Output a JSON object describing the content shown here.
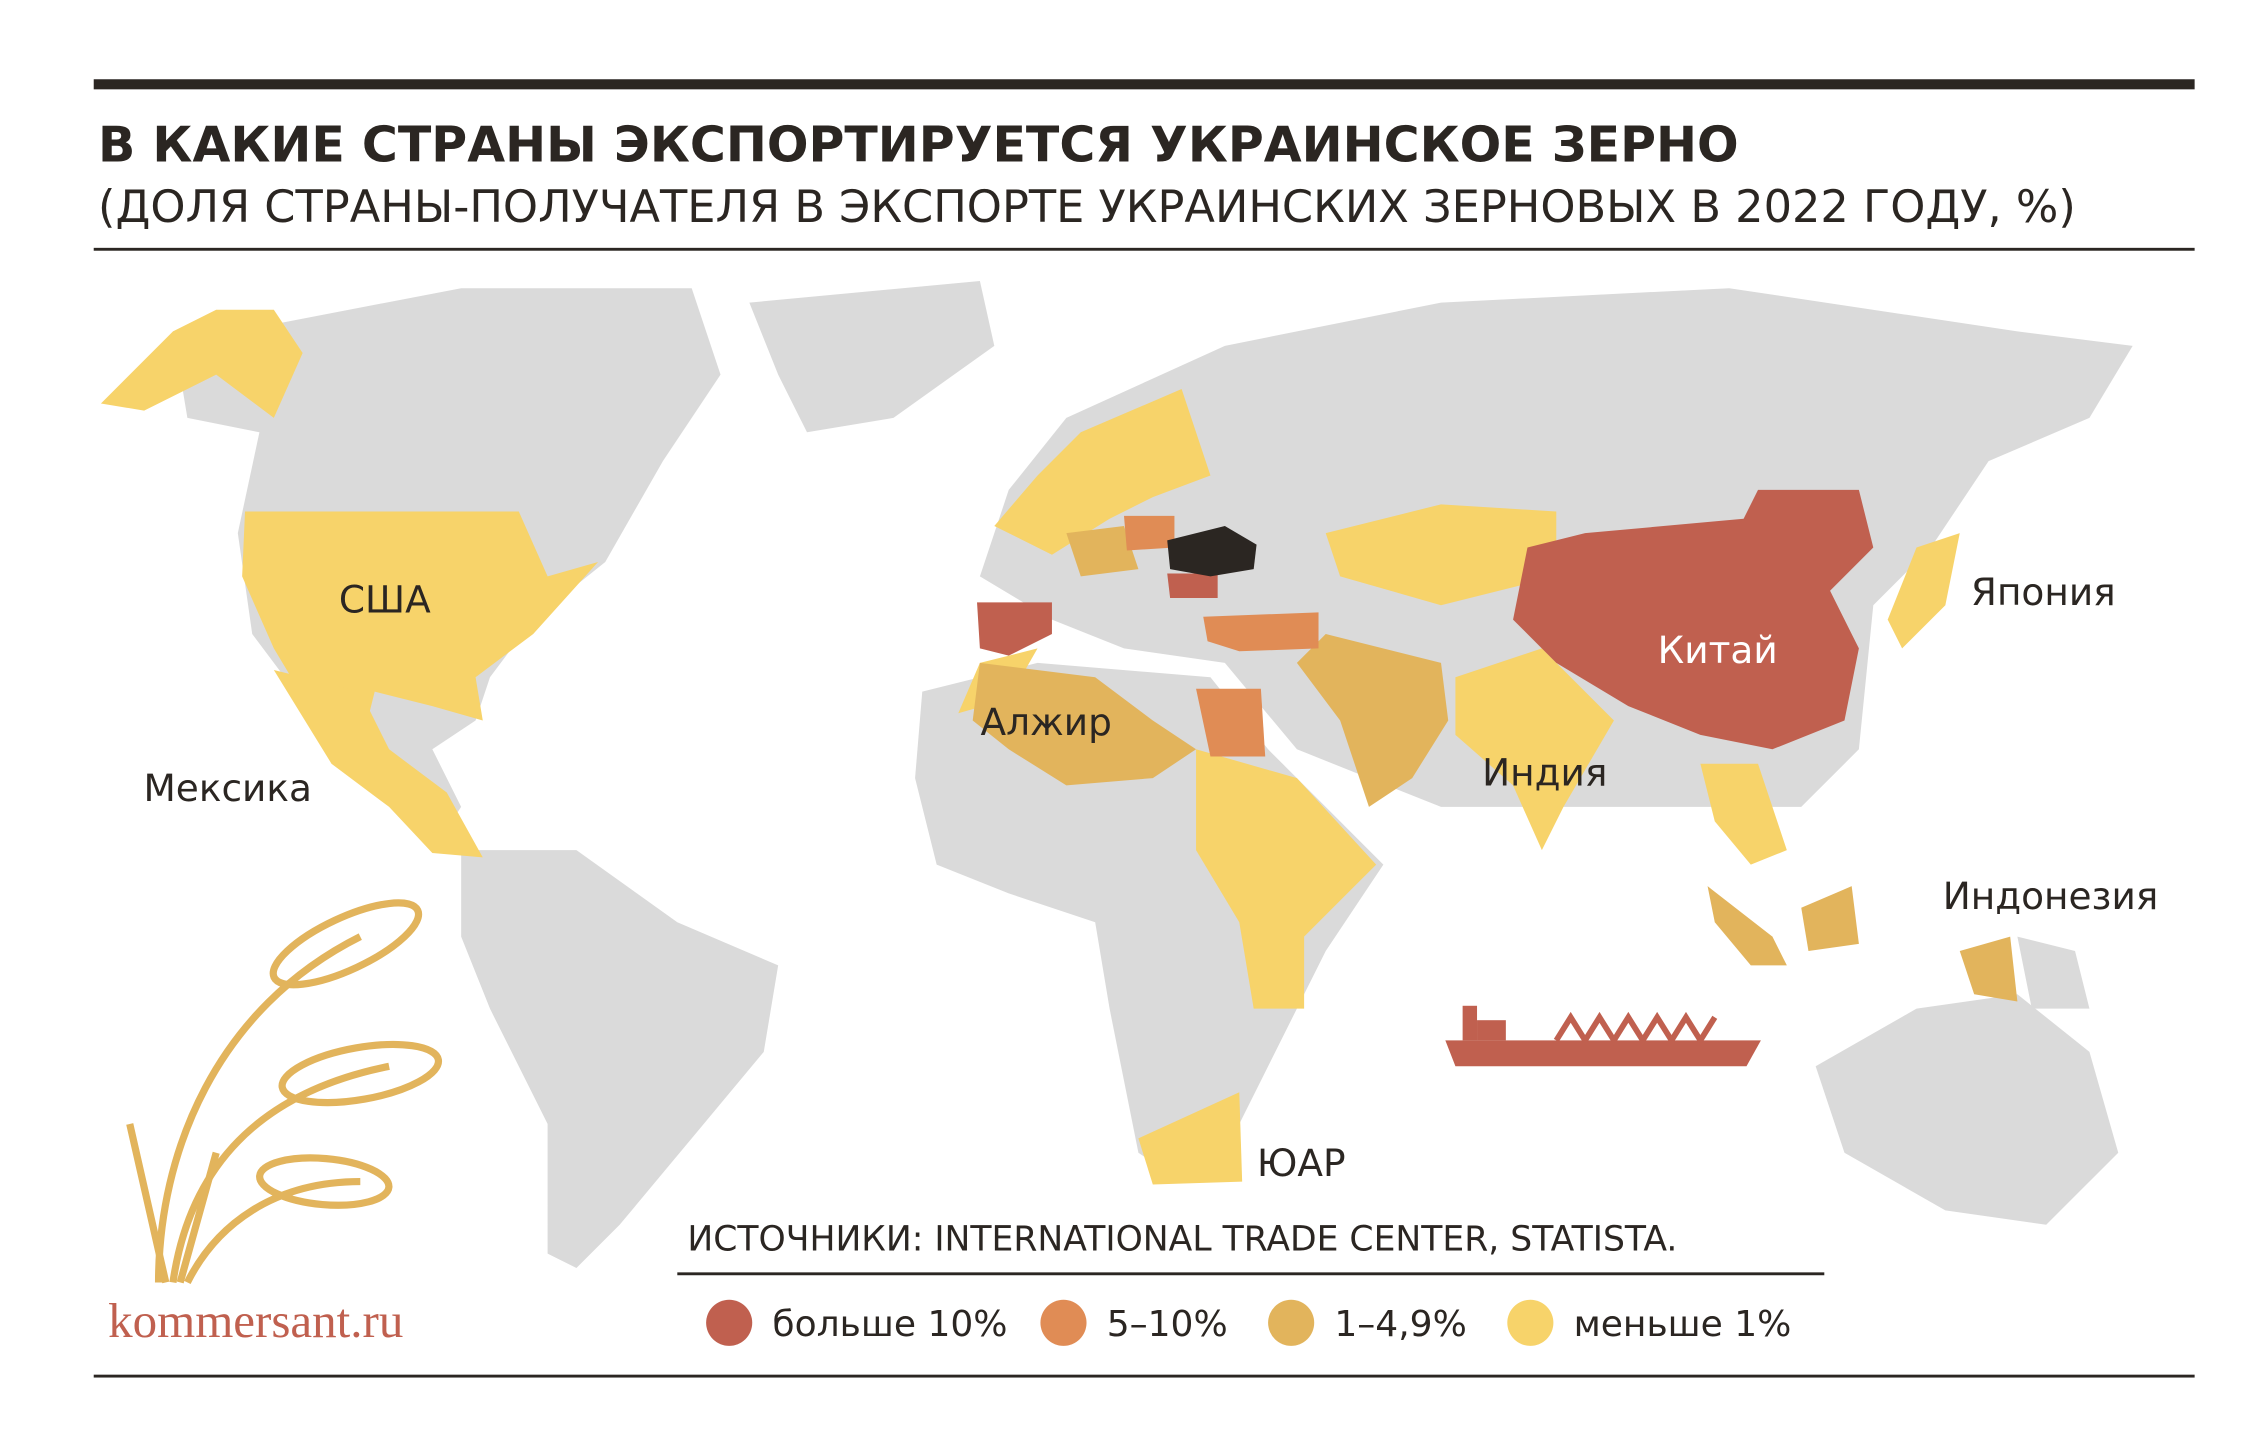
{
  "title": "В КАКИЕ СТРАНЫ ЭКСПОРТИРУЕТСЯ УКРАИНСКОЕ ЗЕРНО",
  "subtitle": "(ДОЛЯ СТРАНЫ-ПОЛУЧАТЕЛЯ В ЭКСПОРТЕ УКРАИНСКИХ ЗЕРНОВЫХ В 2022 ГОДУ, %)",
  "map_labels": [
    "США",
    "Мексика",
    "Алжир",
    "Китай",
    "Индия",
    "Япония",
    "Индонезия",
    "ЮАР"
  ],
  "source": "ИСТОЧНИКИ: INTERNATIONAL TRADE CENTER, STATISTA.",
  "legend": [
    {
      "label": "больше 10%",
      "color": "#c0604f"
    },
    {
      "label": "5–10%",
      "color": "#e08c55"
    },
    {
      "label": "1–4,9%",
      "color": "#e2b45c"
    },
    {
      "label": "меньше 1%",
      "color": "#f7d36a"
    }
  ],
  "logo": "kommersant.ru"
}
